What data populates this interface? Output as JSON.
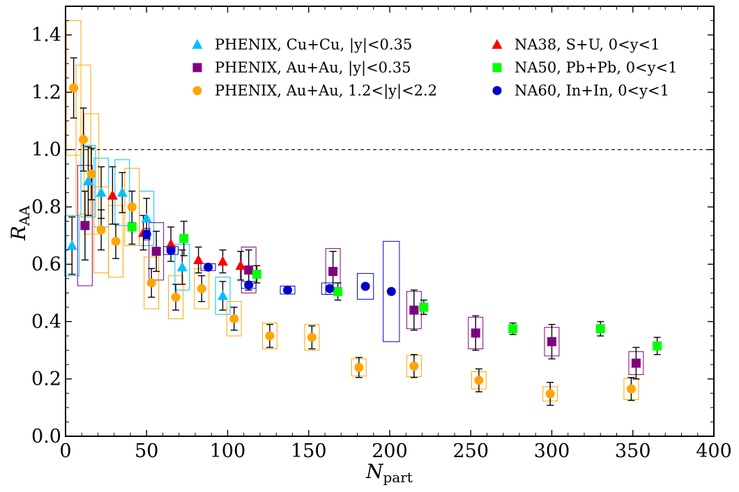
{
  "chart_data": {
    "type": "scatter",
    "title": "",
    "xlabel_main": "N",
    "xlabel_sub": "part",
    "ylabel_main": "R",
    "ylabel_sub": "AA",
    "xlim": [
      0,
      400
    ],
    "ylim": [
      0,
      1.5
    ],
    "xticks": [
      "0",
      "50",
      "100",
      "150",
      "200",
      "250",
      "300",
      "350",
      "400"
    ],
    "yticks": [
      "0.0",
      "0.2",
      "0.4",
      "0.6",
      "0.8",
      "1.0",
      "1.2",
      "1.4"
    ],
    "reference_line": 1.0,
    "legend_position": "top",
    "series": [
      {
        "name": "PHENIX, Cu+Cu, |y|<0.35",
        "marker": "triangle",
        "color": "#00bfff",
        "box_color": "#00bfff",
        "points": [
          {
            "x": 4,
            "y": 0.665,
            "err": 0.1,
            "box": 0.105
          },
          {
            "x": 14,
            "y": 0.89,
            "err": 0.12,
            "box": 0.125
          },
          {
            "x": 22,
            "y": 0.85,
            "err": 0.09,
            "box": 0.12
          },
          {
            "x": 35,
            "y": 0.85,
            "err": 0.07,
            "box": 0.115
          },
          {
            "x": 50,
            "y": 0.76,
            "err": 0.07,
            "box": 0.095
          },
          {
            "x": 72,
            "y": 0.59,
            "err": 0.06,
            "box": 0.08
          },
          {
            "x": 97,
            "y": 0.49,
            "err": 0.05,
            "box": 0.065
          }
        ]
      },
      {
        "name": "PHENIX, Au+Au, |y|<0.35",
        "marker": "square",
        "color": "#800080",
        "box_color": "#800080",
        "points": [
          {
            "x": 12,
            "y": 0.735,
            "err": 0.12,
            "box": 0.21
          },
          {
            "x": 56,
            "y": 0.645,
            "err": 0.07,
            "box": 0.1
          },
          {
            "x": 113,
            "y": 0.58,
            "err": 0.07,
            "box": 0.08
          },
          {
            "x": 165,
            "y": 0.575,
            "err": 0.07,
            "box": 0.08
          },
          {
            "x": 215,
            "y": 0.44,
            "err": 0.07,
            "box": 0.065
          },
          {
            "x": 253,
            "y": 0.36,
            "err": 0.06,
            "box": 0.055
          },
          {
            "x": 300,
            "y": 0.33,
            "err": 0.06,
            "box": 0.05
          },
          {
            "x": 352,
            "y": 0.255,
            "err": 0.055,
            "box": 0.04
          }
        ]
      },
      {
        "name": "PHENIX, Au+Au, 1.2<|y|<2.2",
        "marker": "circle",
        "color": "#ffa500",
        "box_color": "#ffa500",
        "points": [
          {
            "x": 5,
            "y": 1.215,
            "err": 0.105,
            "box": 0.235
          },
          {
            "x": 11,
            "y": 1.035,
            "err": 0.11,
            "box": 0.26
          },
          {
            "x": 16,
            "y": 0.915,
            "err": 0.09,
            "box": 0.21
          },
          {
            "x": 22,
            "y": 0.72,
            "err": 0.07,
            "box": 0.15
          },
          {
            "x": 31,
            "y": 0.68,
            "err": 0.06,
            "box": 0.125
          },
          {
            "x": 41,
            "y": 0.8,
            "err": 0.055,
            "box": 0.135
          },
          {
            "x": 53,
            "y": 0.535,
            "err": 0.05,
            "box": 0.09
          },
          {
            "x": 68,
            "y": 0.485,
            "err": 0.045,
            "box": 0.075
          },
          {
            "x": 84,
            "y": 0.515,
            "err": 0.045,
            "box": 0.07
          },
          {
            "x": 104,
            "y": 0.41,
            "err": 0.04,
            "box": 0.06
          },
          {
            "x": 126,
            "y": 0.35,
            "err": 0.04,
            "box": 0.045
          },
          {
            "x": 152,
            "y": 0.345,
            "err": 0.04,
            "box": 0.045
          },
          {
            "x": 181,
            "y": 0.24,
            "err": 0.035,
            "box": 0.03
          },
          {
            "x": 215,
            "y": 0.245,
            "err": 0.04,
            "box": 0.037
          },
          {
            "x": 255,
            "y": 0.195,
            "err": 0.04,
            "box": 0.03
          },
          {
            "x": 299,
            "y": 0.148,
            "err": 0.04,
            "box": 0.025
          },
          {
            "x": 349,
            "y": 0.165,
            "err": 0.04,
            "box": 0.037
          }
        ]
      },
      {
        "name": "NA38, S+U, 0<y<1",
        "marker": "triangle",
        "color": "#ff0000",
        "box_color": null,
        "points": [
          {
            "x": 29,
            "y": 0.84,
            "err": 0.1
          },
          {
            "x": 48,
            "y": 0.71,
            "err": 0.06
          },
          {
            "x": 65,
            "y": 0.67,
            "err": 0.06
          },
          {
            "x": 82,
            "y": 0.615,
            "err": 0.045
          },
          {
            "x": 97,
            "y": 0.61,
            "err": 0.04
          },
          {
            "x": 108,
            "y": 0.595,
            "err": 0.05
          }
        ]
      },
      {
        "name": "NA50, Pb+Pb, 0<y<1",
        "marker": "square",
        "color": "#00ff00",
        "box_color": null,
        "points": [
          {
            "x": 41,
            "y": 0.73,
            "err": 0.06
          },
          {
            "x": 73,
            "y": 0.69,
            "err": 0.06
          },
          {
            "x": 118,
            "y": 0.565,
            "err": 0.03
          },
          {
            "x": 168,
            "y": 0.505,
            "err": 0.03
          },
          {
            "x": 221,
            "y": 0.45,
            "err": 0.025
          },
          {
            "x": 276,
            "y": 0.375,
            "err": 0.02
          },
          {
            "x": 330,
            "y": 0.375,
            "err": 0.025
          },
          {
            "x": 365,
            "y": 0.315,
            "err": 0.03
          }
        ]
      },
      {
        "name": "NA60, In+In, 0<y<1",
        "marker": "circle",
        "color": "#0000cd",
        "box_color": "#0000cd",
        "points": [
          {
            "x": 50,
            "y": 0.705,
            "err": 0,
            "box": 0.02,
            "bw": 2
          },
          {
            "x": 65,
            "y": 0.648,
            "err": 0,
            "box": 0.014,
            "bw": 4.5
          },
          {
            "x": 88,
            "y": 0.59,
            "err": 0,
            "box": 0.012,
            "bw": 4.5
          },
          {
            "x": 113,
            "y": 0.528,
            "err": 0,
            "box": 0.012,
            "bw": 4.5
          },
          {
            "x": 137,
            "y": 0.51,
            "err": 0,
            "box": 0.014,
            "bw": 4.5
          },
          {
            "x": 163,
            "y": 0.515,
            "err": 0,
            "box": 0.02,
            "bw": 5
          },
          {
            "x": 185,
            "y": 0.523,
            "err": 0,
            "box": 0.045,
            "bw": 5
          },
          {
            "x": 201,
            "y": 0.505,
            "err": 0,
            "box": 0.175,
            "bw": 5
          }
        ]
      }
    ]
  }
}
